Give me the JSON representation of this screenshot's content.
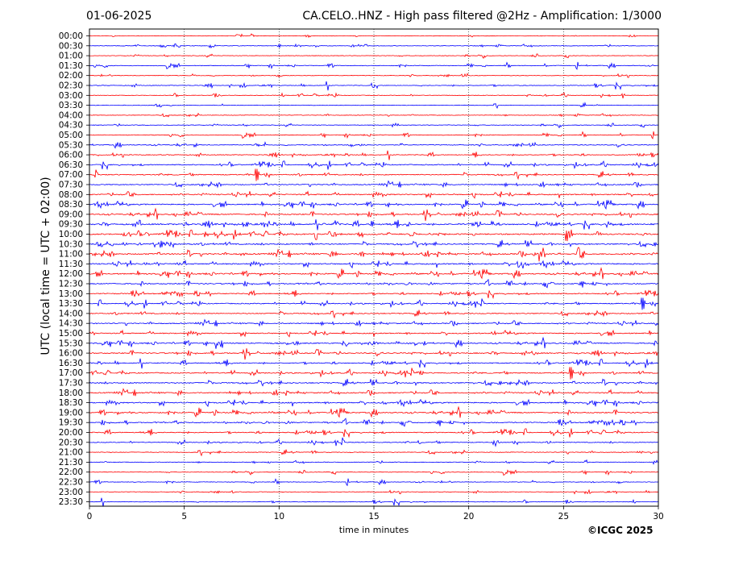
{
  "header": {
    "date": "01-06-2025",
    "title": "CA.CELO..HNZ - High pass filtered @2Hz - Amplification: 1/3000"
  },
  "footer": {
    "copyright": "©ICGC 2025"
  },
  "colors": {
    "trace_a": "#ff0000",
    "trace_b": "#0000ff",
    "axis": "#000000"
  },
  "chart_data": {
    "type": "line",
    "title": "CA.CELO..HNZ - High pass filtered @2Hz - Amplification: 1/3000",
    "xlabel": "time in minutes",
    "ylabel": "UTC (local time = UTC + 02:00)",
    "xlim": [
      0,
      30
    ],
    "x_ticks": [
      "0",
      "5",
      "10",
      "15",
      "20",
      "25",
      "30"
    ],
    "grid": "vertical dotted lines at 5-minute intervals",
    "row_labels": [
      "00:00",
      "00:30",
      "01:00",
      "01:30",
      "02:00",
      "02:30",
      "03:00",
      "03:30",
      "04:00",
      "04:30",
      "05:00",
      "05:30",
      "06:00",
      "06:30",
      "07:00",
      "07:30",
      "08:00",
      "08:30",
      "09:00",
      "09:30",
      "10:00",
      "10:30",
      "11:00",
      "11:30",
      "12:00",
      "12:30",
      "13:00",
      "13:30",
      "14:00",
      "14:30",
      "15:00",
      "15:30",
      "16:00",
      "16:30",
      "17:00",
      "17:30",
      "18:00",
      "18:30",
      "19:00",
      "19:30",
      "20:00",
      "20:30",
      "21:00",
      "21:30",
      "22:00",
      "22:30",
      "23:00",
      "23:30"
    ],
    "row_colors": [
      "red",
      "blue",
      "red",
      "blue",
      "red",
      "blue",
      "red",
      "blue",
      "red",
      "blue",
      "red",
      "blue",
      "red",
      "blue",
      "red",
      "blue",
      "red",
      "blue",
      "red",
      "blue",
      "red",
      "blue",
      "red",
      "blue",
      "red",
      "blue",
      "red",
      "blue",
      "red",
      "blue",
      "red",
      "blue",
      "red",
      "blue",
      "red",
      "blue",
      "red",
      "blue",
      "red",
      "blue",
      "red",
      "blue",
      "red",
      "blue",
      "red",
      "blue",
      "red",
      "blue"
    ],
    "activity": [
      0.05,
      0.08,
      0.1,
      0.18,
      0.12,
      0.2,
      0.12,
      0.06,
      0.1,
      0.15,
      0.18,
      0.35,
      0.35,
      0.5,
      0.55,
      0.55,
      0.7,
      0.7,
      0.75,
      0.95,
      0.9,
      0.8,
      0.85,
      0.8,
      0.8,
      0.65,
      0.55,
      0.5,
      0.55,
      0.6,
      0.6,
      0.65,
      0.7,
      0.6,
      0.6,
      0.75,
      0.7,
      0.7,
      0.75,
      0.6,
      0.55,
      0.3,
      0.25,
      0.18,
      0.12,
      0.12,
      0.08,
      0.05
    ]
  }
}
